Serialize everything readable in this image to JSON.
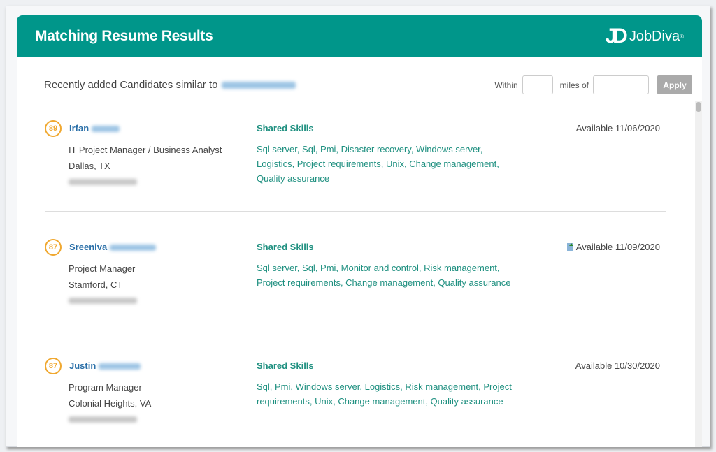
{
  "header": {
    "title": "Matching Resume Results",
    "logo_text": "JobDiva",
    "logo_mark": "JD",
    "registered": "®"
  },
  "filter_bar": {
    "similar_label": "Recently added Candidates similar to",
    "within_label": "Within",
    "miles_label": "miles of",
    "miles_value": "",
    "location_value": "",
    "apply_label": "Apply"
  },
  "shared_skills_label": "Shared Skills",
  "candidates": [
    {
      "score": "89",
      "first_name": "Irfan",
      "title": "IT Project Manager / Business Analyst",
      "location": "Dallas, TX",
      "available": "Available 11/06/2020",
      "has_resume_icon": false,
      "skills": "Sql server, Sql, Pmi, Disaster recovery, Windows server, Logistics, Project requirements, Unix, Change management, Quality assurance"
    },
    {
      "score": "87",
      "first_name": "Sreeniva",
      "title": "Project Manager",
      "location": "Stamford, CT",
      "available": "Available 11/09/2020",
      "has_resume_icon": true,
      "skills": "Sql server, Sql, Pmi, Monitor and control, Risk management, Project requirements, Change management, Quality assurance"
    },
    {
      "score": "87",
      "first_name": "Justin",
      "title": "Program Manager",
      "location": "Colonial Heights, VA",
      "available": "Available 10/30/2020",
      "has_resume_icon": false,
      "skills": "Sql, Pmi, Windows server, Logistics, Risk management, Project requirements, Unix, Change management, Quality assurance"
    }
  ],
  "colors": {
    "header": "#00968a",
    "score": "#f0a830",
    "skills": "#1f9080",
    "name": "#2a6fa8"
  }
}
